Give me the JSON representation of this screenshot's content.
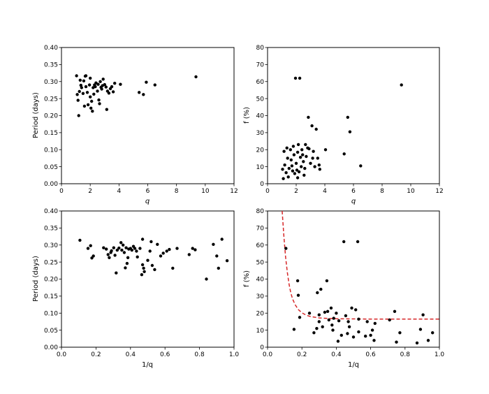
{
  "chart_data": [
    {
      "type": "scatter",
      "xlabel": "q",
      "ylabel": "Period (days)",
      "xlim": [
        0,
        12
      ],
      "ylim": [
        0,
        0.4
      ],
      "xticks": [
        "0",
        "2",
        "4",
        "6",
        "8",
        "10",
        "12"
      ],
      "yticks": [
        "0.00",
        "0.05",
        "0.10",
        "0.15",
        "0.20",
        "0.25",
        "0.30",
        "0.35",
        "0.40"
      ],
      "color": "#000000",
      "points": [
        [
          1.05,
          0.317
        ],
        [
          1.1,
          0.262
        ],
        [
          1.15,
          0.245
        ],
        [
          1.2,
          0.2
        ],
        [
          1.25,
          0.271
        ],
        [
          1.3,
          0.304
        ],
        [
          1.35,
          0.289
        ],
        [
          1.4,
          0.282
        ],
        [
          1.5,
          0.265
        ],
        [
          1.55,
          0.302
        ],
        [
          1.6,
          0.228
        ],
        [
          1.65,
          0.316
        ],
        [
          1.7,
          0.285
        ],
        [
          1.8,
          0.268
        ],
        [
          1.85,
          0.232
        ],
        [
          1.95,
          0.29
        ],
        [
          2.0,
          0.255
        ],
        [
          2.05,
          0.222
        ],
        [
          2.1,
          0.242
        ],
        [
          2.15,
          0.213
        ],
        [
          2.2,
          0.282
        ],
        [
          2.25,
          0.263
        ],
        [
          2.3,
          0.29
        ],
        [
          2.35,
          0.285
        ],
        [
          2.4,
          0.296
        ],
        [
          2.5,
          0.272
        ],
        [
          2.55,
          0.292
        ],
        [
          2.6,
          0.246
        ],
        [
          2.65,
          0.235
        ],
        [
          2.7,
          0.3
        ],
        [
          2.75,
          0.283
        ],
        [
          2.8,
          0.278
        ],
        [
          2.85,
          0.288
        ],
        [
          2.9,
          0.307
        ],
        [
          3.0,
          0.291
        ],
        [
          3.1,
          0.284
        ],
        [
          3.15,
          0.218
        ],
        [
          3.2,
          0.272
        ],
        [
          3.3,
          0.266
        ],
        [
          3.4,
          0.279
        ],
        [
          3.5,
          0.285
        ],
        [
          3.6,
          0.27
        ],
        [
          3.7,
          0.295
        ],
        [
          4.1,
          0.292
        ],
        [
          5.4,
          0.268
        ],
        [
          5.7,
          0.262
        ],
        [
          5.9,
          0.298
        ],
        [
          6.5,
          0.29
        ],
        [
          9.35,
          0.314
        ],
        [
          1.7,
          0.317
        ],
        [
          2.0,
          0.31
        ]
      ]
    },
    {
      "type": "scatter",
      "xlabel": "q",
      "ylabel": "f (%)",
      "xlim": [
        0,
        12
      ],
      "ylim": [
        0,
        80
      ],
      "xticks": [
        "0",
        "2",
        "4",
        "6",
        "8",
        "10",
        "12"
      ],
      "yticks": [
        "0",
        "10",
        "20",
        "30",
        "40",
        "50",
        "60",
        "70",
        "80"
      ],
      "color": "#000000",
      "points": [
        [
          1.05,
          8.5
        ],
        [
          1.1,
          3.0
        ],
        [
          1.15,
          19.0
        ],
        [
          1.2,
          11.0
        ],
        [
          1.3,
          6.5
        ],
        [
          1.35,
          21.0
        ],
        [
          1.4,
          15.0
        ],
        [
          1.45,
          4.0
        ],
        [
          1.5,
          9.0
        ],
        [
          1.6,
          20.0
        ],
        [
          1.65,
          14.0
        ],
        [
          1.7,
          10.5
        ],
        [
          1.75,
          7.5
        ],
        [
          1.8,
          22.0
        ],
        [
          1.85,
          17.0
        ],
        [
          1.9,
          6.0
        ],
        [
          1.95,
          62.0
        ],
        [
          2.0,
          12.0
        ],
        [
          2.05,
          8.0
        ],
        [
          2.1,
          18.5
        ],
        [
          2.15,
          23.0
        ],
        [
          2.2,
          7.0
        ],
        [
          2.25,
          62.0
        ],
        [
          2.3,
          15.5
        ],
        [
          2.35,
          10.0
        ],
        [
          2.4,
          20.0
        ],
        [
          2.45,
          17.0
        ],
        [
          2.5,
          13.0
        ],
        [
          2.55,
          5.0
        ],
        [
          2.6,
          9.0
        ],
        [
          2.65,
          23.0
        ],
        [
          2.7,
          16.0
        ],
        [
          2.8,
          21.0
        ],
        [
          2.85,
          39.0
        ],
        [
          2.9,
          20.5
        ],
        [
          3.0,
          12.0
        ],
        [
          3.1,
          34.0
        ],
        [
          3.15,
          15.0
        ],
        [
          3.2,
          19.0
        ],
        [
          3.3,
          10.0
        ],
        [
          3.4,
          32.0
        ],
        [
          3.5,
          15.0
        ],
        [
          3.6,
          11.0
        ],
        [
          3.65,
          8.5
        ],
        [
          4.05,
          20.0
        ],
        [
          5.35,
          17.5
        ],
        [
          5.6,
          39.0
        ],
        [
          5.75,
          30.5
        ],
        [
          6.5,
          10.5
        ],
        [
          9.35,
          58.0
        ],
        [
          2.1,
          3.5
        ]
      ]
    },
    {
      "type": "scatter",
      "xlabel": "1/q",
      "ylabel": "Period (days)",
      "xlim": [
        0.0,
        1.0
      ],
      "ylim": [
        0,
        0.4
      ],
      "xticks": [
        "0.0",
        "0.2",
        "0.4",
        "0.6",
        "0.8",
        "1.0"
      ],
      "yticks": [
        "0.00",
        "0.05",
        "0.10",
        "0.15",
        "0.20",
        "0.25",
        "0.30",
        "0.35",
        "0.40"
      ],
      "color": "#000000",
      "points": [
        [
          0.107,
          0.314
        ],
        [
          0.154,
          0.29
        ],
        [
          0.169,
          0.298
        ],
        [
          0.176,
          0.262
        ],
        [
          0.185,
          0.268
        ],
        [
          0.244,
          0.292
        ],
        [
          0.26,
          0.288
        ],
        [
          0.27,
          0.272
        ],
        [
          0.277,
          0.263
        ],
        [
          0.286,
          0.278
        ],
        [
          0.29,
          0.283
        ],
        [
          0.303,
          0.292
        ],
        [
          0.31,
          0.27
        ],
        [
          0.317,
          0.218
        ],
        [
          0.323,
          0.285
        ],
        [
          0.333,
          0.291
        ],
        [
          0.345,
          0.307
        ],
        [
          0.35,
          0.285
        ],
        [
          0.357,
          0.3
        ],
        [
          0.364,
          0.278
        ],
        [
          0.37,
          0.233
        ],
        [
          0.375,
          0.292
        ],
        [
          0.38,
          0.246
        ],
        [
          0.385,
          0.263
        ],
        [
          0.39,
          0.288
        ],
        [
          0.4,
          0.29
        ],
        [
          0.408,
          0.285
        ],
        [
          0.417,
          0.296
        ],
        [
          0.425,
          0.29
        ],
        [
          0.435,
          0.282
        ],
        [
          0.44,
          0.265
        ],
        [
          0.455,
          0.29
        ],
        [
          0.465,
          0.213
        ],
        [
          0.47,
          0.242
        ],
        [
          0.476,
          0.232
        ],
        [
          0.48,
          0.222
        ],
        [
          0.5,
          0.255
        ],
        [
          0.513,
          0.282
        ],
        [
          0.52,
          0.31
        ],
        [
          0.526,
          0.24
        ],
        [
          0.54,
          0.228
        ],
        [
          0.556,
          0.302
        ],
        [
          0.575,
          0.268
        ],
        [
          0.59,
          0.276
        ],
        [
          0.61,
          0.282
        ],
        [
          0.625,
          0.287
        ],
        [
          0.645,
          0.232
        ],
        [
          0.67,
          0.29
        ],
        [
          0.74,
          0.272
        ],
        [
          0.76,
          0.29
        ],
        [
          0.775,
          0.286
        ],
        [
          0.84,
          0.2
        ],
        [
          0.88,
          0.302
        ],
        [
          0.9,
          0.268
        ],
        [
          0.91,
          0.232
        ],
        [
          0.93,
          0.317
        ],
        [
          0.96,
          0.254
        ],
        [
          0.47,
          0.317
        ]
      ]
    },
    {
      "type": "scatter",
      "xlabel": "1/q",
      "ylabel": "f (%)",
      "xlim": [
        0.0,
        1.0
      ],
      "ylim": [
        0,
        80
      ],
      "xticks": [
        "0.0",
        "0.2",
        "0.4",
        "0.6",
        "0.8",
        "1.0"
      ],
      "yticks": [
        "0",
        "10",
        "20",
        "30",
        "40",
        "50",
        "60",
        "70",
        "80"
      ],
      "color": "#000000",
      "curve_color": "#d62728",
      "curve": {
        "style": "dashed",
        "points": [
          [
            0.085,
            80
          ],
          [
            0.095,
            65
          ],
          [
            0.105,
            53
          ],
          [
            0.115,
            44
          ],
          [
            0.125,
            37
          ],
          [
            0.135,
            32
          ],
          [
            0.145,
            28.5
          ],
          [
            0.16,
            25
          ],
          [
            0.18,
            22
          ],
          [
            0.2,
            20.2
          ],
          [
            0.225,
            18.8
          ],
          [
            0.25,
            18.0
          ],
          [
            0.3,
            17.2
          ],
          [
            0.35,
            16.9
          ],
          [
            0.4,
            16.7
          ],
          [
            0.5,
            16.6
          ],
          [
            0.6,
            16.5
          ],
          [
            0.8,
            16.5
          ],
          [
            1.0,
            16.5
          ]
        ]
      },
      "points": [
        [
          0.107,
          58.0
        ],
        [
          0.154,
          10.5
        ],
        [
          0.175,
          39.0
        ],
        [
          0.179,
          30.5
        ],
        [
          0.187,
          17.5
        ],
        [
          0.244,
          20.0
        ],
        [
          0.27,
          8.5
        ],
        [
          0.286,
          11.0
        ],
        [
          0.29,
          32.0
        ],
        [
          0.3,
          15.0
        ],
        [
          0.3,
          19.0
        ],
        [
          0.31,
          34.0
        ],
        [
          0.32,
          12.0
        ],
        [
          0.333,
          20.5
        ],
        [
          0.345,
          39.0
        ],
        [
          0.35,
          21.0
        ],
        [
          0.357,
          16.0
        ],
        [
          0.37,
          23.0
        ],
        [
          0.375,
          13.0
        ],
        [
          0.38,
          10.0
        ],
        [
          0.385,
          17.0
        ],
        [
          0.4,
          20.0
        ],
        [
          0.41,
          3.5
        ],
        [
          0.415,
          15.5
        ],
        [
          0.43,
          7.0
        ],
        [
          0.444,
          62.0
        ],
        [
          0.455,
          18.5
        ],
        [
          0.465,
          8.0
        ],
        [
          0.47,
          15.0
        ],
        [
          0.476,
          12.0
        ],
        [
          0.49,
          23.0
        ],
        [
          0.5,
          6.0
        ],
        [
          0.513,
          22.0
        ],
        [
          0.525,
          62.0
        ],
        [
          0.53,
          16.5
        ],
        [
          0.53,
          9.0
        ],
        [
          0.57,
          6.5
        ],
        [
          0.58,
          15.0
        ],
        [
          0.6,
          7.0
        ],
        [
          0.61,
          10.0
        ],
        [
          0.62,
          4.0
        ],
        [
          0.625,
          14.0
        ],
        [
          0.71,
          16.0
        ],
        [
          0.74,
          21.0
        ],
        [
          0.75,
          3.0
        ],
        [
          0.77,
          8.5
        ],
        [
          0.87,
          2.5
        ],
        [
          0.89,
          10.5
        ],
        [
          0.905,
          19.0
        ],
        [
          0.935,
          4.0
        ],
        [
          0.96,
          8.5
        ]
      ]
    }
  ]
}
